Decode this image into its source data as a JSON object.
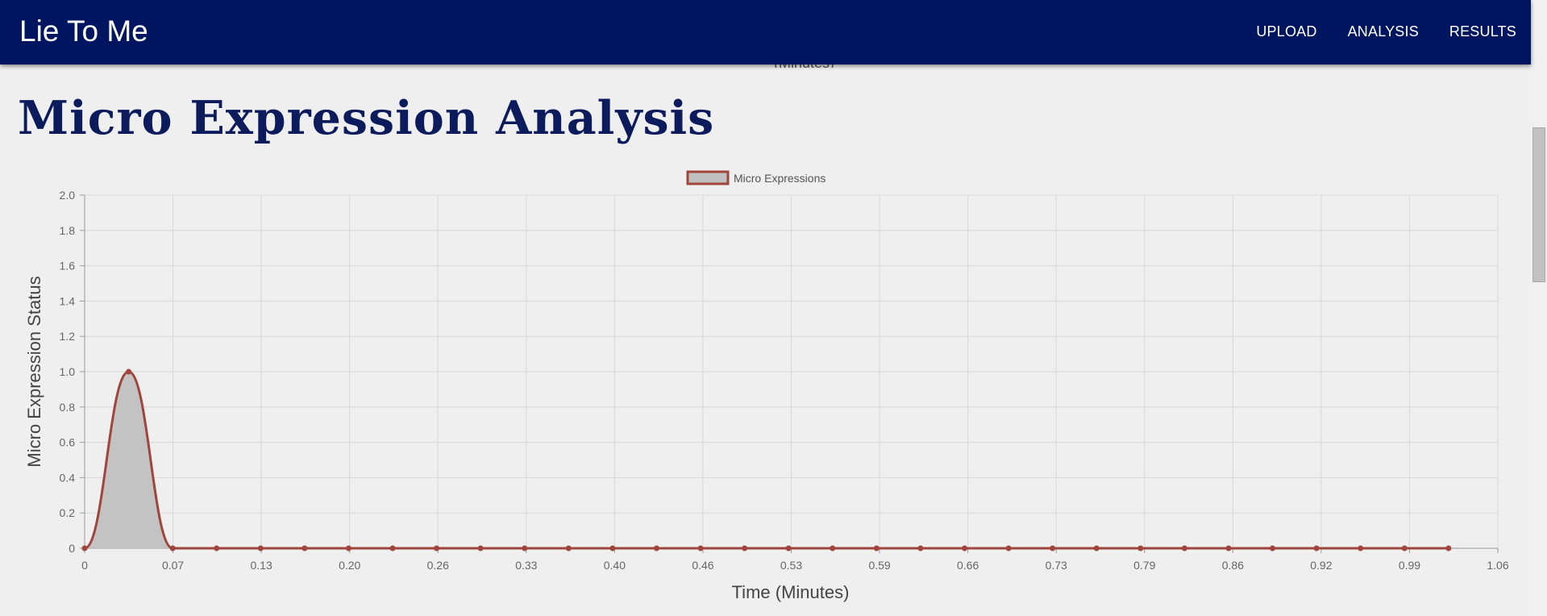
{
  "navbar": {
    "brand": "Lie To Me",
    "links": [
      "UPLOAD",
      "ANALYSIS",
      "RESULTS"
    ]
  },
  "page": {
    "peek_text": "(Minutes)",
    "title": "Micro Expression Analysis"
  },
  "colors": {
    "nav_bg": "#001560",
    "line": "#a0453b",
    "fill": "#c0c0c0",
    "grid": "#d8d8d8"
  },
  "chart_data": {
    "type": "area",
    "title": "",
    "legend": "Micro Expressions",
    "legend_position": "top-center",
    "xlabel": "Time (Minutes)",
    "ylabel": "Micro Expression Status",
    "x_tick_labels": [
      "0",
      "0.07",
      "0.13",
      "0.20",
      "0.26",
      "0.33",
      "0.40",
      "0.46",
      "0.53",
      "0.59",
      "0.66",
      "0.73",
      "0.79",
      "0.86",
      "0.92",
      "0.99",
      "1.06"
    ],
    "x_range": [
      0,
      1.06
    ],
    "y_ticks": [
      "0",
      "0.2",
      "0.4",
      "0.6",
      "0.8",
      "1.0",
      "1.2",
      "1.4",
      "1.6",
      "1.8",
      "2.0"
    ],
    "ylim": [
      0,
      2.0
    ],
    "grid": true,
    "series": [
      {
        "name": "Micro Expressions",
        "x": [
          0,
          0.033,
          0.066,
          0.099,
          0.132,
          0.165,
          0.198,
          0.231,
          0.264,
          0.297,
          0.33,
          0.363,
          0.396,
          0.429,
          0.462,
          0.495,
          0.528,
          0.561,
          0.594,
          0.627,
          0.66,
          0.693,
          0.726,
          0.759,
          0.792,
          0.825,
          0.858,
          0.891,
          0.924,
          0.957,
          0.99,
          1.023
        ],
        "values": [
          0,
          1.0,
          0,
          0,
          0,
          0,
          0,
          0,
          0,
          0,
          0,
          0,
          0,
          0,
          0,
          0,
          0,
          0,
          0,
          0,
          0,
          0,
          0,
          0,
          0,
          0,
          0,
          0,
          0,
          0,
          0,
          0
        ]
      }
    ]
  }
}
